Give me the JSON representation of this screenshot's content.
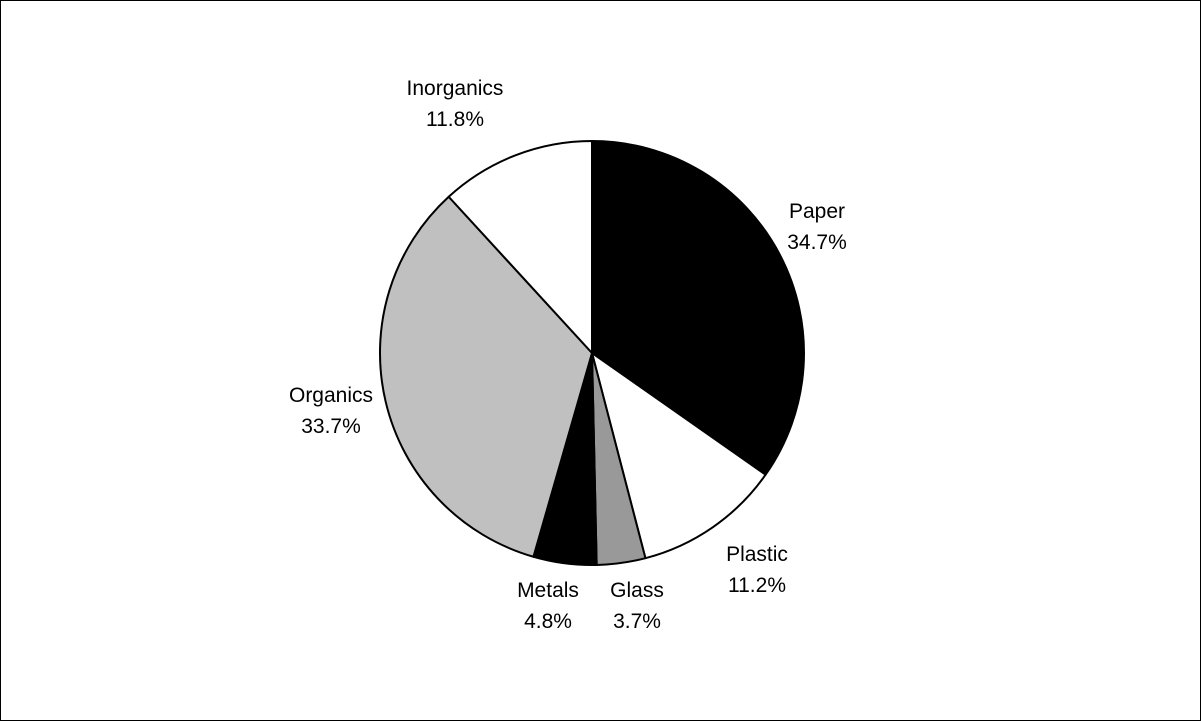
{
  "chart_data": {
    "type": "pie",
    "title": "",
    "start_angle_deg": 0,
    "direction": "clockwise",
    "legend": "none",
    "slices": [
      {
        "label": "Paper",
        "value": 34.7,
        "value_label": "34.7%",
        "color": "#000000"
      },
      {
        "label": "Plastic",
        "value": 11.2,
        "value_label": "11.2%",
        "color": "#ffffff"
      },
      {
        "label": "Glass",
        "value": 3.7,
        "value_label": "3.7%",
        "color": "#999999"
      },
      {
        "label": "Metals",
        "value": 4.8,
        "value_label": "4.8%",
        "color": "#000000"
      },
      {
        "label": "Organics",
        "value": 33.7,
        "value_label": "33.7%",
        "color": "#c0c0c0"
      },
      {
        "label": "Inorganics",
        "value": 11.8,
        "value_label": "11.8%",
        "color": "#ffffff"
      }
    ]
  }
}
